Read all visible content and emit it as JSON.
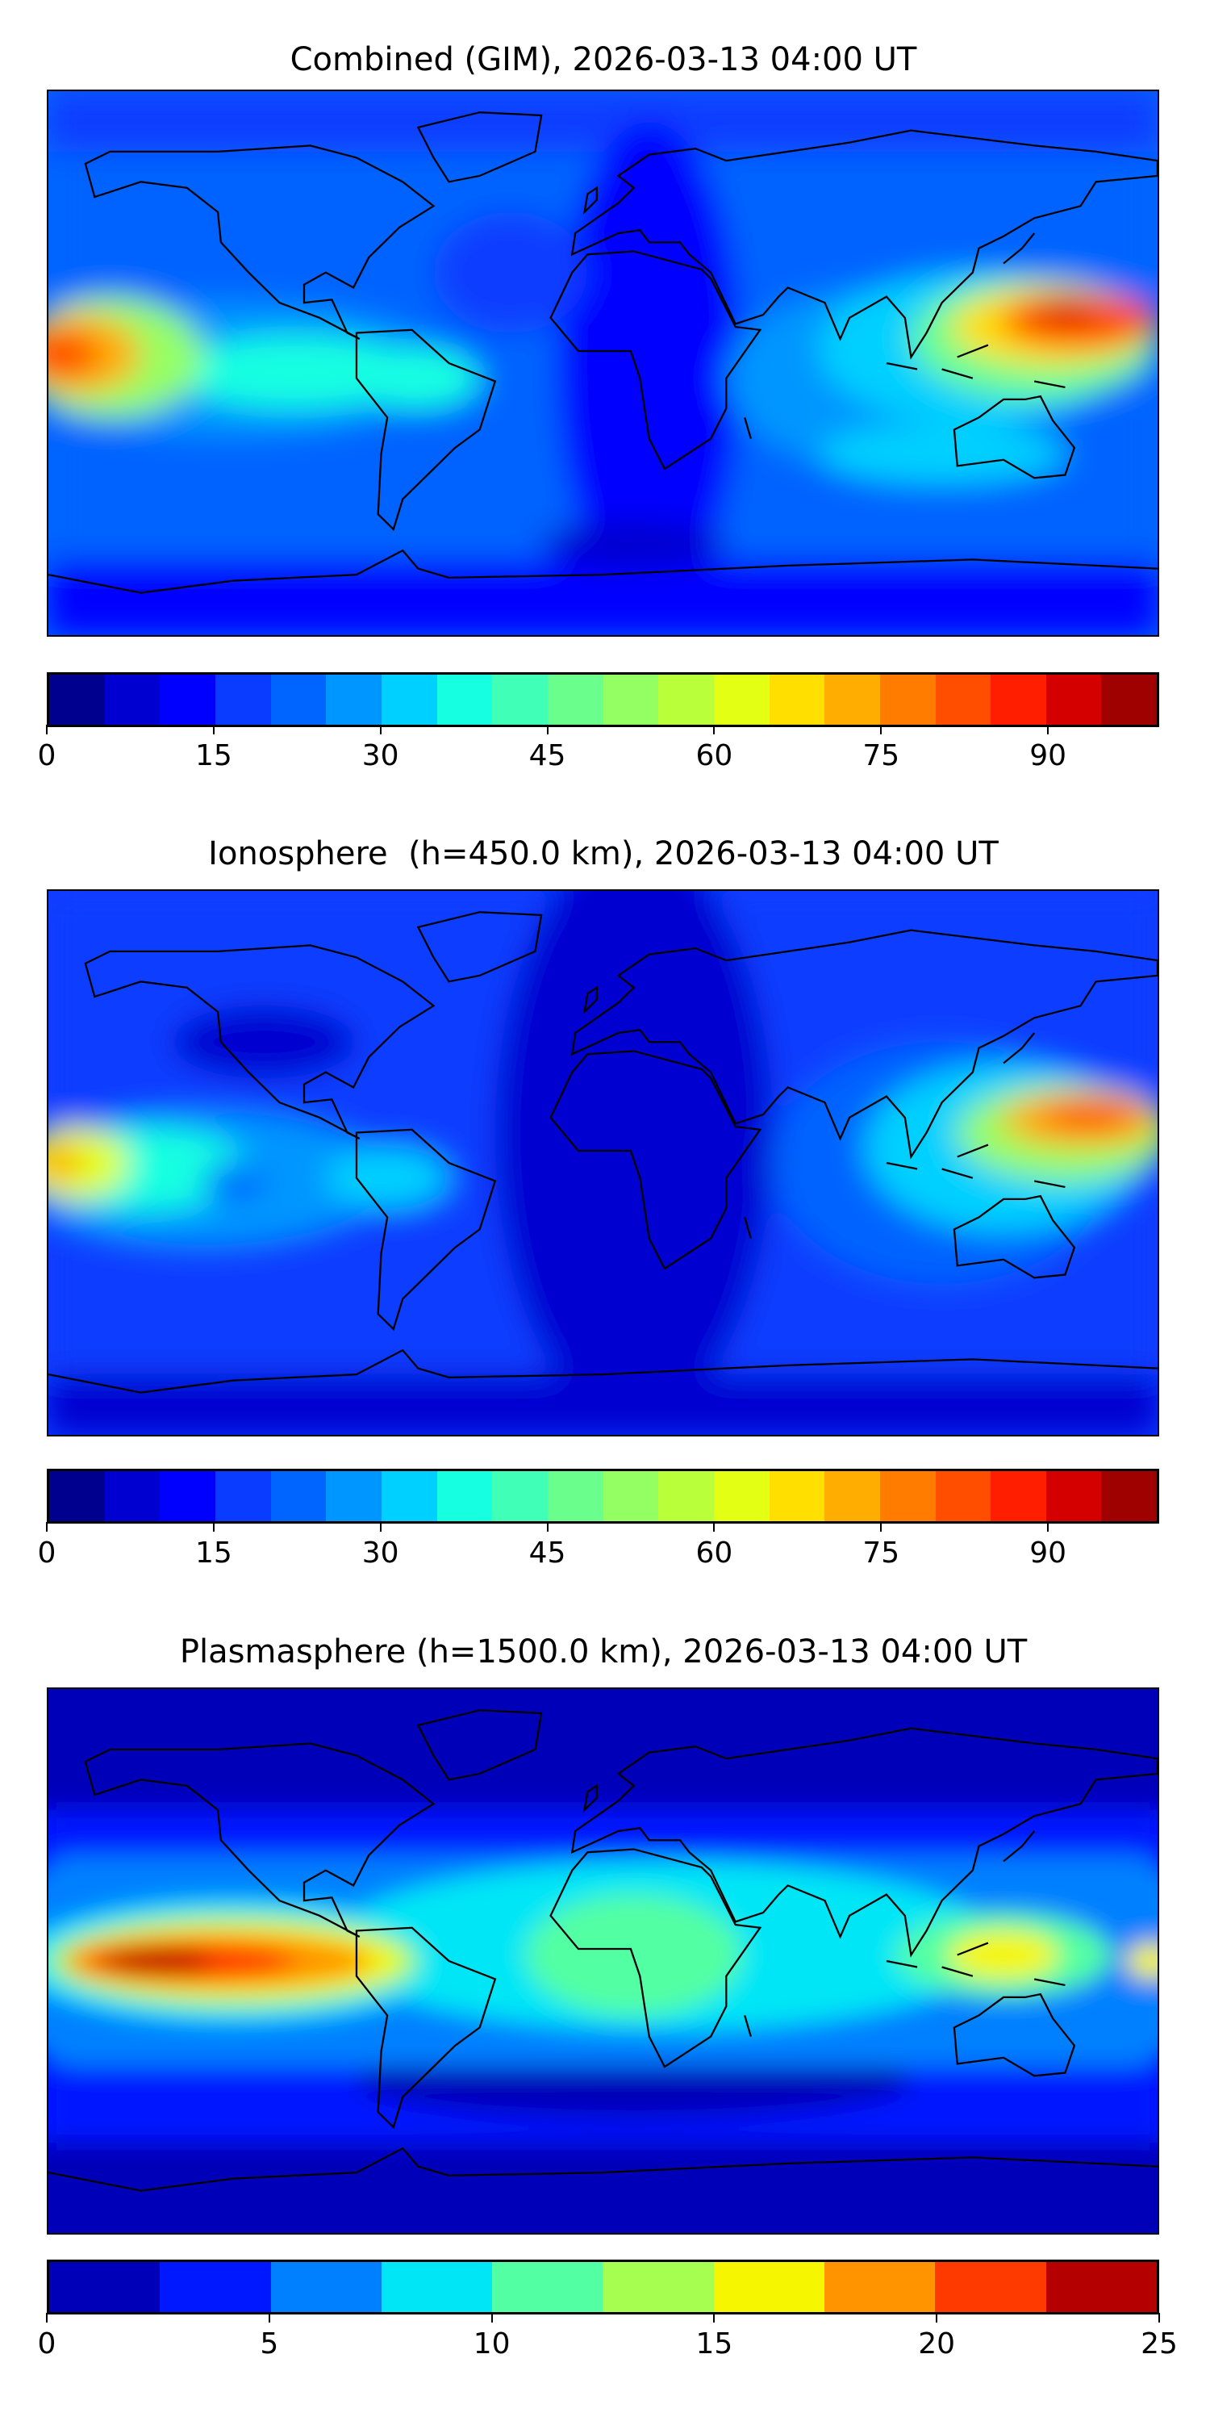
{
  "chart_data": [
    {
      "type": "heatmap",
      "title": "Combined (GIM), 2026-03-13 04:00 UT",
      "projection": "equirectangular world map with coastlines",
      "colorbar": {
        "range": [
          0,
          100
        ],
        "step": 5,
        "ticks": [
          0,
          15,
          30,
          45,
          60,
          75,
          90
        ],
        "colors": [
          "#00008f",
          "#0000d0",
          "#0000ff",
          "#0a3cff",
          "#0064ff",
          "#0096ff",
          "#00d0ff",
          "#16ffe1",
          "#40ffb7",
          "#6aff8d",
          "#94ff63",
          "#b9ff3a",
          "#e3ff14",
          "#ffdf00",
          "#ffad00",
          "#ff7c00",
          "#ff4e00",
          "#ff1e00",
          "#d40000",
          "#9f0000"
        ]
      },
      "features": [
        "max ~95 over central Pacific near equator (western edge)",
        "max ~90 over western Pacific / Philippines",
        "minimum ~10 over Atlantic/Africa and polar regions"
      ]
    },
    {
      "type": "heatmap",
      "title": "Ionosphere  (h=450.0 km), 2026-03-13 04:00 UT",
      "projection": "equirectangular world map with coastlines",
      "colorbar": {
        "range": [
          0,
          100
        ],
        "step": 5,
        "ticks": [
          0,
          15,
          30,
          45,
          60,
          75,
          90
        ],
        "colors": [
          "#00008f",
          "#0000d0",
          "#0000ff",
          "#0a3cff",
          "#0064ff",
          "#0096ff",
          "#00d0ff",
          "#16ffe1",
          "#40ffb7",
          "#6aff8d",
          "#94ff63",
          "#b9ff3a",
          "#e3ff14",
          "#ffdf00",
          "#ffad00",
          "#ff7c00",
          "#ff4e00",
          "#ff1e00",
          "#d40000",
          "#9f0000"
        ]
      },
      "features": [
        "max ~80 over western Pacific",
        "~70 central Pacific edge",
        "minimum ~5 over Atlantic/Africa"
      ]
    },
    {
      "type": "heatmap",
      "title": "Plasmasphere (h=1500.0 km), 2026-03-13 04:00 UT",
      "projection": "equirectangular world map with coastlines",
      "colorbar": {
        "range": [
          0,
          25
        ],
        "step": 2.5,
        "ticks": [
          0,
          5,
          10,
          15,
          20,
          25
        ],
        "colors": [
          "#0000b8",
          "#0018ff",
          "#0080ff",
          "#00e6f6",
          "#53ffa3",
          "#a6ff50",
          "#f6f600",
          "#ff9400",
          "#ff3a00",
          "#b40000"
        ]
      },
      "features": [
        "max ~24 over eastern Pacific near equator",
        "~15-17 over Indonesia",
        "minimum ~1 at high latitudes"
      ]
    }
  ]
}
